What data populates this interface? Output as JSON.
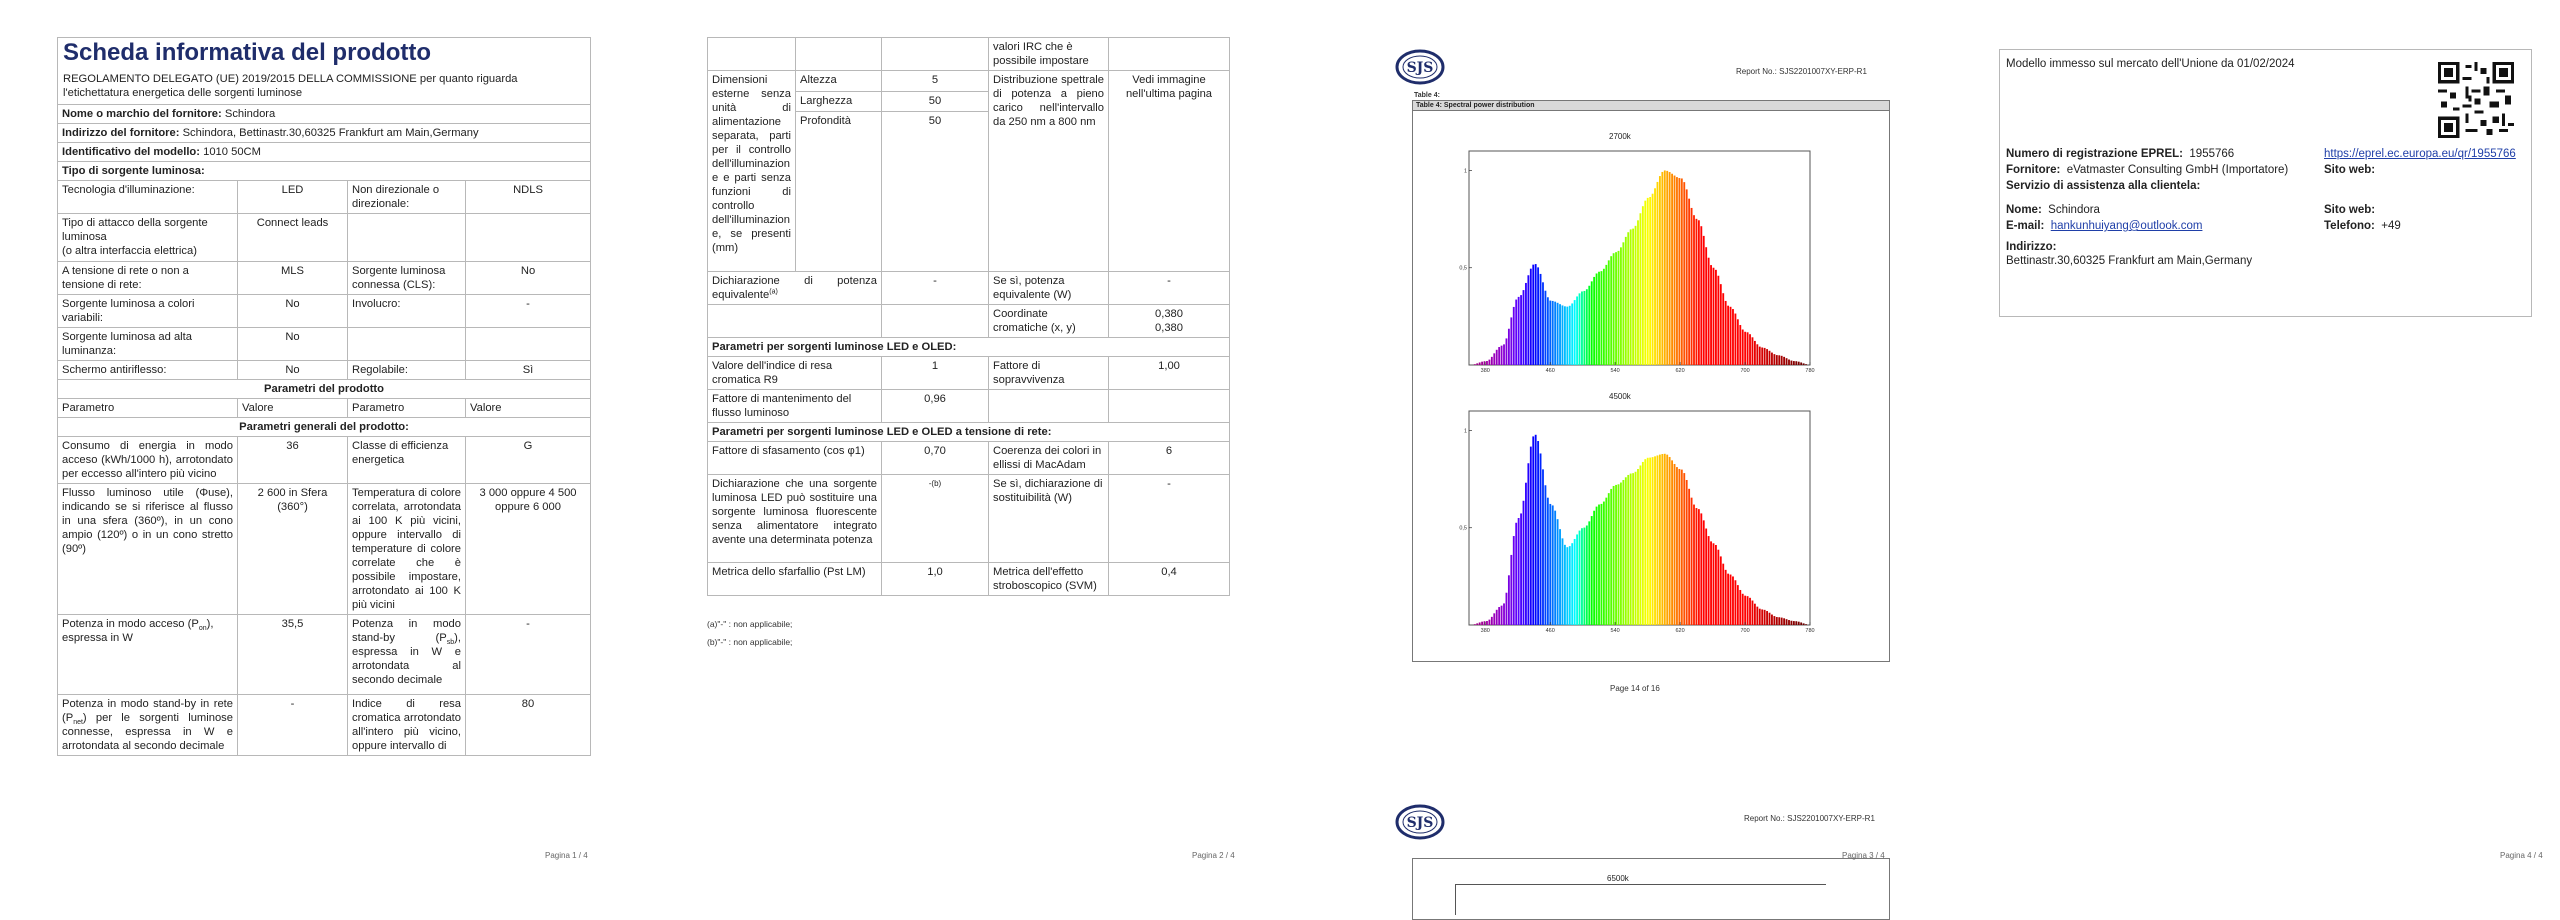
{
  "page1": {
    "title": "Scheda informativa del prodotto",
    "subtitle": "REGOLAMENTO DELEGATO (UE) 2019/2015 DELLA COMMISSIONE per quanto riguarda l'etichettatura energetica delle sorgenti luminose",
    "supplier_label": "Nome o marchio del fornitore:",
    "supplier_value": "Schindora",
    "address_label": "Indirizzo del fornitore:",
    "address_value": "Schindora, Bettinastr.30,60325 Frankfurt am Main,Germany",
    "model_label": "Identificativo del modello:",
    "model_value": "1010 50CM",
    "type_label": "Tipo di sorgente luminosa:",
    "r_tech_l": "Tecnologia d'illuminazione:",
    "r_tech_v": "LED",
    "r_dir_l": "Non direzionale o direzionale:",
    "r_dir_v": "NDLS",
    "r_cap_l": "Tipo di attacco della sorgente luminosa",
    "r_cap_l2": "(o altra interfaccia elettrica)",
    "r_cap_v": "Connect leads",
    "r_mains_l": "A tensione di rete o non a tensione di rete:",
    "r_mains_v": "MLS",
    "r_cls_l": "Sorgente luminosa connessa (CLS):",
    "r_cls_v": "No",
    "r_col_l": "Sorgente luminosa a colori variabili:",
    "r_col_v": "No",
    "r_env_l": "Involucro:",
    "r_env_v": "-",
    "r_hl_l": "Sorgente luminosa ad alta luminanza:",
    "r_hl_v": "No",
    "r_glare_l": "Schermo antiriflesso:",
    "r_glare_v": "No",
    "r_dim_l": "Regolabile:",
    "r_dim_v": "Sì",
    "params_title": "Parametri del prodotto",
    "h_param": "Parametro",
    "h_value": "Valore",
    "general_title": "Parametri generali del prodotto:",
    "g1_l": "Consumo di energia in modo acceso (kWh/1000 h), arrotondato per eccesso all'intero più vicino",
    "g1_v": "36",
    "g1_l2": "Classe di efficienza energetica",
    "g1_v2": "G",
    "g2_l": "Flusso luminoso utile (Φuse), indicando se si riferisce al flusso in una sfera (360º), in un cono ampio (120º) o in un cono stretto (90º)",
    "g2_v": "2 600 in Sfera (360°)",
    "g2_l2": "Temperatura di colore correlata, arrotondata ai 100 K più vicini, oppure intervallo di temperature di colore correlate che è possibile impostare, arrotondato ai 100 K più vicini",
    "g2_v2": "3 000 oppure 4 500 oppure 6 000",
    "g3_l_a": "Potenza in modo acceso (P",
    "g3_l_sub": "on",
    "g3_l_b": "), espressa in W",
    "g3_v": "35,5",
    "g3_l2_a": "Potenza in modo stand-by (P",
    "g3_l2_sub": "sb",
    "g3_l2_b": "), espressa in W e arrotondata al secondo decimale",
    "g3_v2": "-",
    "g4_l_a": "Potenza in modo stand-by in rete (P",
    "g4_l_sub": "net",
    "g4_l_b": ") per le sorgenti luminose connesse, espressa in W e arrotondata al secondo decimale",
    "g4_v": "-",
    "g4_l2": "Indice di resa cromatica arrotondato all'intero più vicino, oppure intervallo di",
    "g4_v2": "80",
    "page_label": "Pagina 1 / 4"
  },
  "page2": {
    "top_cont": "valori IRC che è possibile impostare",
    "dims_l": "Dimensioni esterne senza unità di alimentazione separata, parti per il controllo dell'illuminazione e parti senza funzioni di controllo dell'illuminazione, se presenti (mm)",
    "h_l": "Altezza",
    "h_v": "5",
    "w_l": "Larghezza",
    "w_v": "50",
    "d_l": "Profondità",
    "d_v": "50",
    "spd_l": "Distribuzione spettrale di potenza a pieno carico nell'intervallo da 250 nm a 800 nm",
    "spd_v": "Vedi immagine nell'ultima pagina",
    "eq_l": "Dichiarazione di potenza equivalente",
    "eq_sup": "(a)",
    "eq_v": "-",
    "eq_l2": "Se sì, potenza equivalente (W)",
    "eq_v2": "-",
    "xy_l": "Coordinate cromatiche (x, y)",
    "xy_v1": "0,380",
    "xy_v2": "0,380",
    "led_title": "Parametri per sorgenti luminose LED e OLED:",
    "r9_l": "Valore dell'indice di resa cromatica R9",
    "r9_v": "1",
    "surv_l": "Fattore di sopravvivenza",
    "surv_v": "1,00",
    "lum_l": "Fattore di mantenimento del flusso luminoso",
    "lum_v": "0,96",
    "mains_title": "Parametri per sorgenti luminose LED e OLED a tensione di rete:",
    "pf_l": "Fattore di sfasamento (cos φ1)",
    "pf_v": "0,70",
    "mac_l": "Coerenza dei colori in ellissi di MacAdam",
    "mac_v": "6",
    "fl_l": "Dichiarazione che una sorgente luminosa LED può sostituire una sorgente luminosa fluorescente senza alimentatore integrato avente una determinata potenza",
    "fl_v": "-(b)",
    "fl_l2": "Se sì, dichiarazione di sostituibilità (W)",
    "fl_v2": "-",
    "pst_l": "Metrica dello sfarfallio (Pst LM)",
    "pst_v": "1,0",
    "svm_l": "Metrica dell'effetto stroboscopico (SVM)",
    "svm_v": "0,4",
    "fn_a": "(a)\"-\" : non applicabile;",
    "fn_b": "(b)\"-\" : non applicabile;",
    "page_label": "Pagina 2 / 4"
  },
  "page3": {
    "logo_text": "SJS",
    "report_no": "Report No.: SJS2201007XY-ERP-R1",
    "table_label": "Table 4:",
    "table_caption": "Table 4: Spectral power distribution",
    "chart1_title": "2700k",
    "chart2_title": "4500k",
    "chart3_title": "6500k",
    "page_of": "Page 14 of 16",
    "page_label": "Pagina 3 / 4"
  },
  "page4": {
    "market_text": "Modello immesso sul mercato dell'Unione da 01/02/2024",
    "eprel_l": "Numero di registrazione EPREL:",
    "eprel_v": "1955766",
    "eprel_link": "https://eprel.ec.europa.eu/qr/1955766",
    "forn_l": "Fornitore:",
    "forn_v": "eVatmaster Consulting GmbH (Importatore)",
    "web_l": "Sito web:",
    "serv_l": "Servizio di assistenza alla clientela:",
    "nome_l": "Nome:",
    "nome_v": "Schindora",
    "web2_l": "Sito web:",
    "mail_l": "E-mail:",
    "mail_v": "hankunhuiyang@outlook.com",
    "tel_l": "Telefono:",
    "tel_v": "+49",
    "ind_l": "Indirizzo:",
    "ind_v": "Bettinastr.30,60325 Frankfurt am Main,Germany",
    "page_label": "Pagina 4 / 4"
  },
  "chart_data": [
    {
      "type": "area",
      "title": "2700k",
      "x": [
        360,
        380,
        400,
        420,
        440,
        460,
        480,
        500,
        520,
        540,
        560,
        580,
        600,
        620,
        640,
        660,
        680,
        700,
        720,
        740,
        760,
        780
      ],
      "values": [
        0.0,
        0.02,
        0.1,
        0.35,
        0.52,
        0.33,
        0.3,
        0.38,
        0.48,
        0.58,
        0.7,
        0.86,
        1.0,
        0.96,
        0.75,
        0.5,
        0.3,
        0.17,
        0.09,
        0.05,
        0.02,
        0.0
      ],
      "xlim": [
        360,
        780
      ],
      "ylim": [
        0,
        1.1
      ],
      "yticks": [
        0.5,
        1.0
      ],
      "xticks": [
        380,
        460,
        540,
        620,
        700,
        780
      ]
    },
    {
      "type": "area",
      "title": "4500k",
      "x": [
        360,
        380,
        400,
        420,
        440,
        460,
        480,
        500,
        520,
        540,
        560,
        580,
        600,
        620,
        640,
        660,
        680,
        700,
        720,
        740,
        760,
        780
      ],
      "values": [
        0.0,
        0.02,
        0.1,
        0.55,
        0.98,
        0.62,
        0.4,
        0.5,
        0.62,
        0.72,
        0.78,
        0.86,
        0.88,
        0.8,
        0.6,
        0.42,
        0.26,
        0.15,
        0.08,
        0.04,
        0.02,
        0.0
      ],
      "xlim": [
        360,
        780
      ],
      "ylim": [
        0,
        1.1
      ],
      "yticks": [
        0.5,
        1.0
      ],
      "xticks": [
        380,
        460,
        540,
        620,
        700,
        780
      ]
    }
  ]
}
